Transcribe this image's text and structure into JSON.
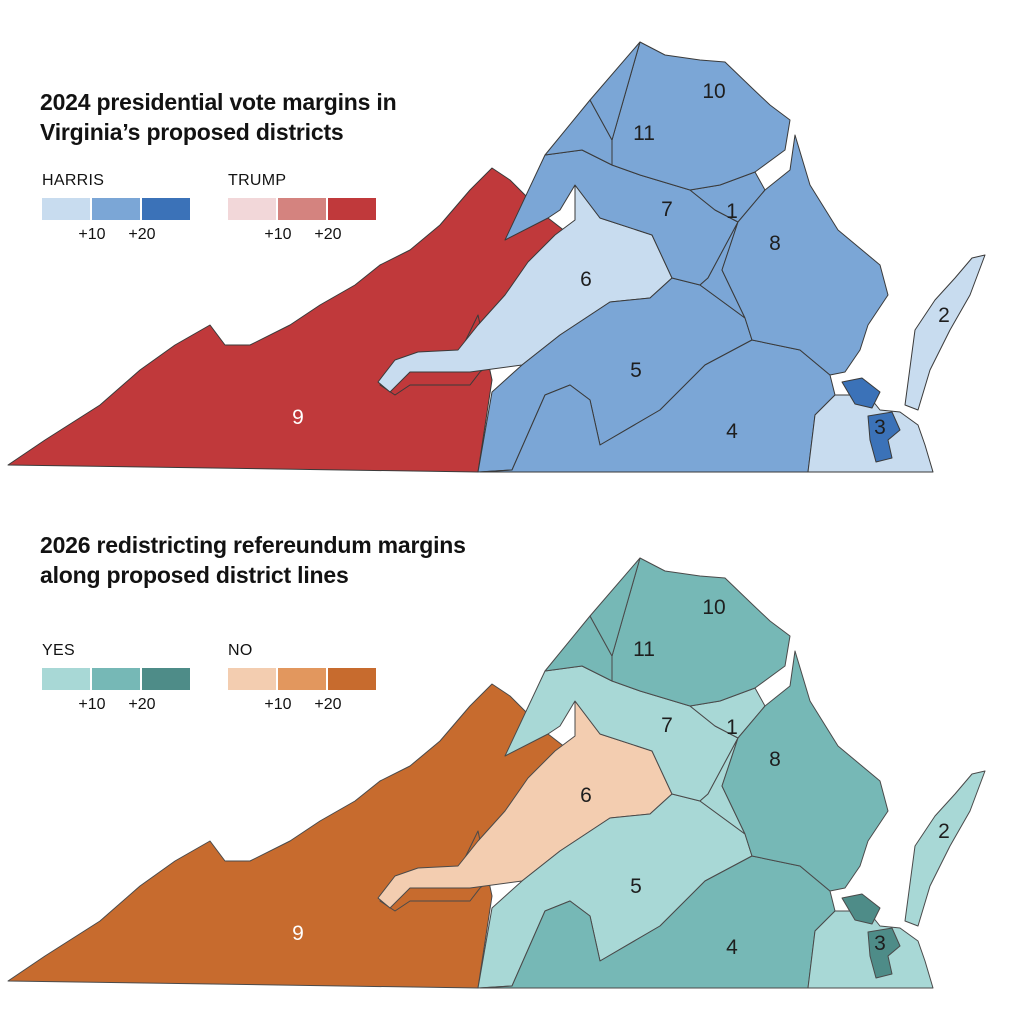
{
  "panels": [
    {
      "title_line1": "2024 presidential vote margins in",
      "title_line2": "Virginia’s proposed districts",
      "legend_left": {
        "label": "HARRIS",
        "colors": [
          "#c8dcef",
          "#7ba6d6",
          "#3b72b8"
        ],
        "ticks": [
          "+10",
          "+20"
        ]
      },
      "legend_right": {
        "label": "TRUMP",
        "colors": [
          "#f2d7d9",
          "#d4837f",
          "#c0393b"
        ],
        "ticks": [
          "+10",
          "+20"
        ]
      },
      "district_fills": {
        "d9": "#c0393b",
        "d6": "#c8dcef",
        "d5": "#7ba6d6",
        "d4": "#7ba6d6",
        "d7": "#7ba6d6",
        "d1": "#7ba6d6",
        "d8": "#7ba6d6",
        "d10": "#7ba6d6",
        "d11": "#7ba6d6",
        "d2": "#c8dcef",
        "d3": "#c8dcef",
        "d3dark": "#3b72b8"
      },
      "district_labels": [
        "9",
        "6",
        "5",
        "4",
        "7",
        "1",
        "8",
        "10",
        "11",
        "2",
        "3"
      ]
    },
    {
      "title_line1": "2026 redistricting refereundum margins",
      "title_line2": "along proposed district lines",
      "legend_left": {
        "label": "YES",
        "colors": [
          "#a8d8d6",
          "#76b8b6",
          "#4e8c88"
        ],
        "ticks": [
          "+10",
          "+20"
        ]
      },
      "legend_right": {
        "label": "NO",
        "colors": [
          "#f3cdb0",
          "#e2975e",
          "#c76b2e"
        ],
        "ticks": [
          "+10",
          "+20"
        ]
      },
      "district_fills": {
        "d9": "#c76b2e",
        "d6": "#f3cdb0",
        "d5": "#a8d8d6",
        "d4": "#76b8b6",
        "d7": "#a8d8d6",
        "d1": "#a8d8d6",
        "d8": "#76b8b6",
        "d10": "#76b8b6",
        "d11": "#76b8b6",
        "d2": "#a8d8d6",
        "d3": "#a8d8d6",
        "d3dark": "#4e8c88"
      },
      "district_labels": [
        "9",
        "6",
        "5",
        "4",
        "7",
        "1",
        "8",
        "10",
        "11",
        "2",
        "3"
      ]
    }
  ]
}
